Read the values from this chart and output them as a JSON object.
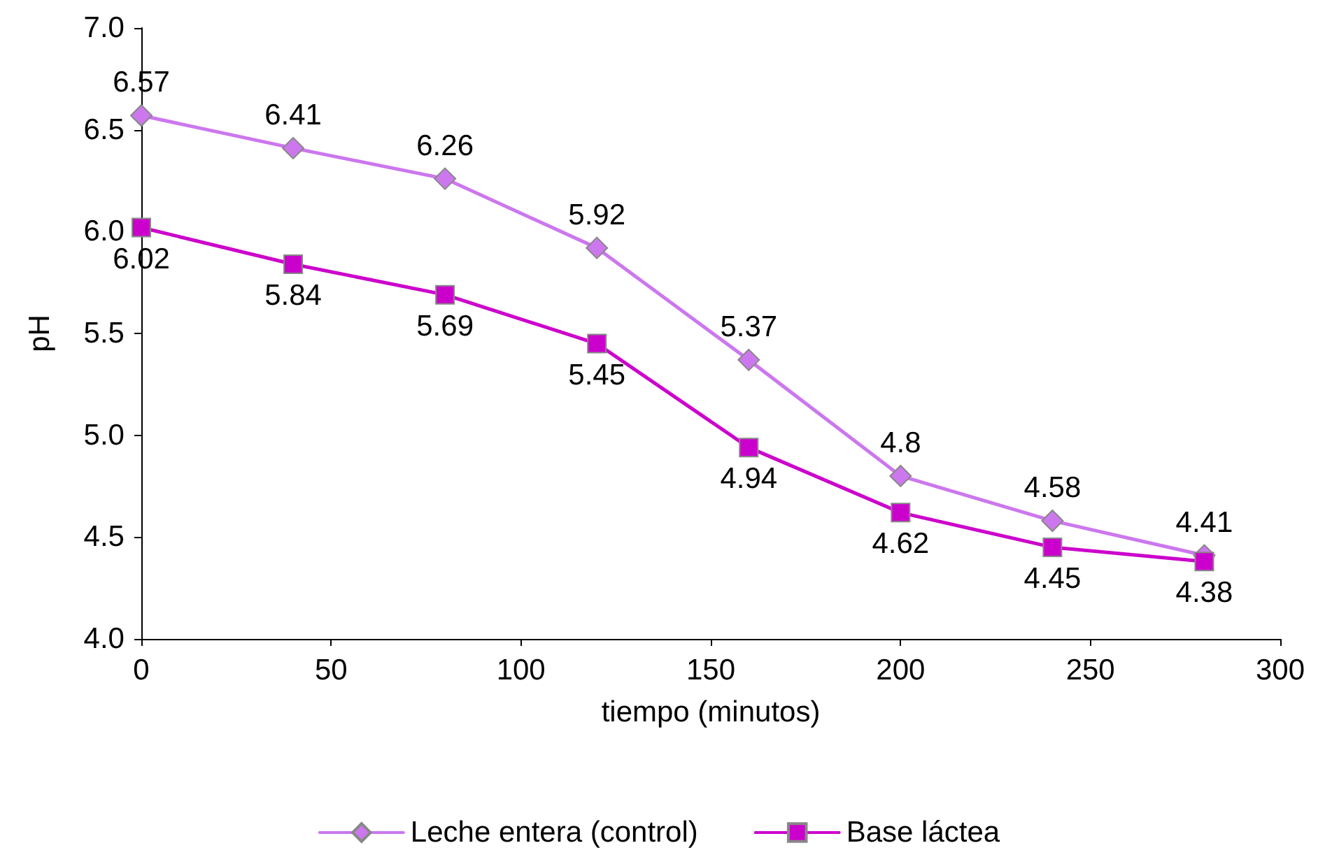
{
  "chart_data": {
    "type": "line",
    "xlabel": "tiempo (minutos)",
    "ylabel": "pH",
    "x": [
      0,
      40,
      80,
      120,
      160,
      200,
      240,
      280
    ],
    "series": [
      {
        "name": "Leche entera (control)",
        "color": "#cc77ee",
        "marker": "diamond",
        "values": [
          6.57,
          6.41,
          6.26,
          5.92,
          5.37,
          4.8,
          4.58,
          4.41
        ]
      },
      {
        "name": "Base láctea",
        "color": "#cc00cc",
        "marker": "square",
        "values": [
          6.02,
          5.84,
          5.69,
          5.45,
          4.94,
          4.62,
          4.45,
          4.38
        ]
      }
    ],
    "xlim": [
      0,
      300
    ],
    "xticks": [
      0,
      50,
      100,
      150,
      200,
      250,
      300
    ],
    "ylim": [
      4.0,
      7.0
    ],
    "yticks": [
      {
        "value": 4.0,
        "label": "4.0"
      },
      {
        "value": 4.5,
        "label": "4.5"
      },
      {
        "value": 5.0,
        "label": "5.0"
      },
      {
        "value": 5.5,
        "label": "5.5"
      },
      {
        "value": 6.0,
        "label": "6.0"
      },
      {
        "value": 6.5,
        "label": "6.5"
      },
      {
        "value": 7.0,
        "label": "7.0"
      }
    ],
    "data_labels": true,
    "grid": false,
    "legend": "bottom",
    "line_style": "solid"
  }
}
